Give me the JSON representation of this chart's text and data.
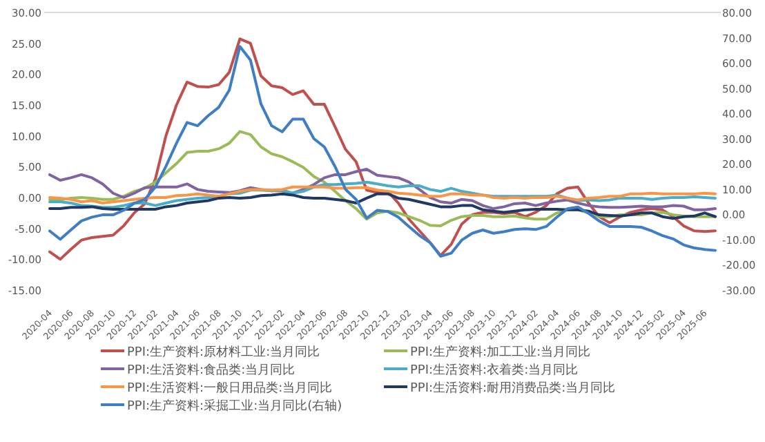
{
  "chart_data": {
    "type": "line",
    "categories": [
      "2020-04",
      null,
      "2020-06",
      null,
      "2020-08",
      null,
      "2020-10",
      null,
      "2020-12",
      null,
      "2021-02",
      null,
      "2021-04",
      null,
      "2021-06",
      null,
      "2021-08",
      null,
      "2021-10",
      null,
      "2021-12",
      null,
      "2022-02",
      null,
      "2022-04",
      null,
      "2022-06",
      null,
      "2022-08",
      null,
      "2022-10",
      null,
      "2022-12",
      null,
      "2023-02",
      null,
      "2023-04",
      null,
      "2023-06",
      null,
      "2023-08",
      null,
      "2023-10",
      null,
      "2023-12",
      null,
      "2024-02",
      null,
      "2024-04",
      null,
      "2024-06",
      null,
      "2024-08",
      null,
      "2024-10",
      null,
      "2024-12",
      null,
      "2025-02",
      null,
      "2025-04",
      null,
      "2025-06",
      null
    ],
    "series": [
      {
        "name": "PPI:生产资料:原材料工业:当月同比",
        "color": "#c0504d",
        "values": [
          -8.8,
          -10.0,
          -8.4,
          -6.9,
          -6.5,
          -6.3,
          -6.1,
          -4.6,
          -2.5,
          -1.0,
          3.0,
          10.0,
          15.0,
          18.7,
          18.0,
          17.9,
          18.3,
          20.3,
          25.7,
          25.0,
          19.7,
          18.1,
          17.8,
          16.7,
          17.3,
          15.1,
          15.1,
          11.5,
          7.8,
          5.8,
          1.2,
          0.8,
          1.0,
          -0.9,
          -3.5,
          -5.4,
          -7.3,
          -9.4,
          -7.6,
          -4.3,
          -2.8,
          -2.4,
          -2.4,
          -2.6,
          -2.4,
          -3.1,
          -2.4,
          -1.3,
          0.6,
          1.5,
          1.7,
          -0.9,
          -3.1,
          -4.1,
          -3.1,
          -2.4,
          -2.0,
          -1.8,
          -2.0,
          -3.1,
          -4.6,
          -5.4,
          -5.5,
          -5.4
        ]
      },
      {
        "name": "PPI:生产资料:加工工业:当月同比",
        "color": "#9bbb59",
        "values": [
          -0.3,
          -0.4,
          -0.1,
          0,
          -0.1,
          -0.3,
          -0.3,
          0.2,
          1.0,
          1.5,
          2.5,
          4.0,
          5.5,
          7.3,
          7.5,
          7.5,
          7.9,
          8.8,
          10.7,
          10.2,
          8.2,
          7.1,
          6.6,
          5.8,
          4.9,
          3.4,
          2.5,
          1.0,
          -0.5,
          -1.8,
          -3.5,
          -2.5,
          -2.2,
          -2.5,
          -3.1,
          -3.7,
          -4.5,
          -4.6,
          -3.7,
          -3.1,
          -2.9,
          -2.9,
          -3.1,
          -3.1,
          -3.0,
          -3.3,
          -3.5,
          -3.5,
          -2.5,
          -2.0,
          -2.0,
          -2.5,
          -3.1,
          -3.1,
          -2.8,
          -2.8,
          -2.8,
          -2.5,
          -2.4,
          -2.8,
          -3.0,
          -3.1,
          -3.1,
          -3.1
        ]
      },
      {
        "name": "PPI:生活资料:食品类:当月同比",
        "color": "#8064a2",
        "values": [
          3.7,
          2.8,
          3.2,
          3.7,
          3.2,
          2.2,
          0.7,
          0,
          0.7,
          1.6,
          1.7,
          1.7,
          1.7,
          2.2,
          1.3,
          1.0,
          0.9,
          0.8,
          1.1,
          1.6,
          1.3,
          1.1,
          1.1,
          0.7,
          1.3,
          2.1,
          3.2,
          3.7,
          3.7,
          4.2,
          4.6,
          3.6,
          3.4,
          3.2,
          2.5,
          1.3,
          0,
          -0.7,
          -0.9,
          -0.3,
          -0.5,
          -1.3,
          -1.8,
          -1.5,
          -1.0,
          -0.9,
          -1.3,
          -0.9,
          -0.6,
          -0.4,
          -0.9,
          -1.3,
          -1.5,
          -1.6,
          -1.6,
          -1.5,
          -1.4,
          -1.5,
          -1.5,
          -1.3,
          -1.4,
          -2.0,
          -2.0,
          -1.8
        ]
      },
      {
        "name": "PPI:生活资料:衣着类:当月同比",
        "color": "#4bacc6",
        "values": [
          -0.7,
          -0.7,
          -0.9,
          -1.3,
          -1.4,
          -1.6,
          -1.6,
          -1.3,
          -0.9,
          -0.9,
          -1.3,
          -0.9,
          -0.5,
          -0.3,
          -0.1,
          0,
          0.2,
          0.6,
          0.7,
          1.2,
          1.2,
          1.1,
          1.2,
          0.7,
          1.0,
          1.7,
          2.1,
          2.1,
          2.2,
          2.3,
          2.5,
          2.2,
          1.9,
          1.7,
          1.9,
          1.9,
          1.3,
          1.0,
          1.5,
          1.0,
          0.7,
          0.4,
          0.2,
          0.2,
          0.2,
          0.2,
          0.2,
          0.2,
          0.4,
          -0.1,
          -0.5,
          -0.4,
          -0.5,
          -0.4,
          -0.1,
          -0.1,
          -0.1,
          -0.3,
          -0.1,
          0,
          0,
          0.1,
          0,
          -0.1
        ]
      },
      {
        "name": "PPI:生活资料:一般日用品类:当月同比",
        "color": "#f79646",
        "values": [
          0,
          -0.1,
          -0.3,
          -0.7,
          -0.5,
          -0.9,
          -0.7,
          -0.5,
          -0.3,
          -0.1,
          0,
          0,
          0.3,
          0.4,
          0.6,
          0.4,
          0.2,
          0.6,
          1.0,
          1.3,
          1.3,
          1.2,
          1.3,
          1.7,
          1.7,
          1.7,
          1.7,
          1.5,
          1.5,
          1.6,
          1.6,
          1.2,
          1.0,
          0.7,
          0.6,
          0.4,
          0.2,
          0.2,
          0.6,
          0.6,
          0.4,
          0.4,
          0,
          -0.1,
          0,
          -0.1,
          0,
          0,
          0.2,
          -0.1,
          -0.4,
          -0.1,
          0,
          0.2,
          0.2,
          0.6,
          0.6,
          0.7,
          0.6,
          0.6,
          0.6,
          0.6,
          0.7,
          0.6
        ]
      },
      {
        "name": "PPI:生活资料:耐用消费品类:当月同比",
        "color": "#1f3864",
        "values": [
          -1.8,
          -1.8,
          -1.6,
          -1.6,
          -1.5,
          -1.8,
          -1.9,
          -1.9,
          -1.9,
          -1.9,
          -1.9,
          -1.5,
          -1.3,
          -0.9,
          -0.7,
          -0.5,
          -0.1,
          0,
          -0.1,
          0,
          0.3,
          0.4,
          0.6,
          0.4,
          0,
          -0.1,
          -0.1,
          -0.3,
          -0.5,
          -0.9,
          -0.1,
          0.6,
          0.6,
          -0.1,
          -0.3,
          -0.7,
          -1.1,
          -1.5,
          -1.5,
          -1.3,
          -1.3,
          -2.0,
          -2.2,
          -2.4,
          -2.2,
          -2.0,
          -1.9,
          -1.9,
          -1.9,
          -2.0,
          -2.0,
          -2.2,
          -2.8,
          -2.9,
          -3.0,
          -2.8,
          -2.5,
          -2.5,
          -3.1,
          -3.4,
          -3.1,
          -3.0,
          -2.5,
          -3.1
        ]
      },
      {
        "name": "PPI:生产资料:采掘工业:当月同比(右轴)",
        "color": "#3f7dc4",
        "axis": "y2",
        "values": [
          -6.6,
          -9.9,
          -6.2,
          -2.6,
          -1.1,
          -0.2,
          -0.2,
          1.6,
          4.4,
          5.9,
          10.8,
          19.0,
          28.2,
          36.4,
          35.1,
          39.1,
          42.4,
          49.2,
          66.5,
          61.1,
          43.7,
          35.1,
          32.7,
          37.7,
          37.7,
          30.0,
          26.7,
          19.0,
          9.9,
          5.9,
          -1.5,
          1.6,
          1.1,
          -1.1,
          -4.8,
          -8.4,
          -11.2,
          -16.6,
          -15.4,
          -10.2,
          -7.5,
          -6.2,
          -7.5,
          -6.9,
          -6.0,
          -5.7,
          -6.0,
          -4.8,
          -1.1,
          2.2,
          2.9,
          0.4,
          -2.6,
          -4.8,
          -4.8,
          -4.8,
          -5.1,
          -6.6,
          -8.4,
          -9.7,
          -12.1,
          -13.3,
          -13.9,
          -14.3
        ]
      }
    ],
    "ylim": [
      -15,
      30
    ],
    "yticks": [
      {
        "value": -15,
        "label": "-15.00"
      },
      {
        "value": -10,
        "label": "-10.00"
      },
      {
        "value": -5,
        "label": "-5.00"
      },
      {
        "value": 0,
        "label": "0.00"
      },
      {
        "value": 5,
        "label": "5.00"
      },
      {
        "value": 10,
        "label": "10.00"
      },
      {
        "value": 15,
        "label": "15.00"
      },
      {
        "value": 20,
        "label": "20.00"
      },
      {
        "value": 25,
        "label": "25.00"
      },
      {
        "value": 30,
        "label": "30.00"
      }
    ],
    "y2lim": [
      -30,
      80
    ],
    "y2ticks": [
      {
        "value": -30,
        "label": "-30.00"
      },
      {
        "value": -20,
        "label": "-20.00"
      },
      {
        "value": -10,
        "label": "-10.00"
      },
      {
        "value": 0,
        "label": "0.00"
      },
      {
        "value": 10,
        "label": "10.00"
      },
      {
        "value": 20,
        "label": "20.00"
      },
      {
        "value": 30,
        "label": "30.00"
      },
      {
        "value": 40,
        "label": "40.00"
      },
      {
        "value": 50,
        "label": "50.00"
      },
      {
        "value": 60,
        "label": "60.00"
      },
      {
        "value": 70,
        "label": "70.00"
      },
      {
        "value": 80,
        "label": "80.00"
      }
    ],
    "legend": "bottom",
    "marker": "none"
  }
}
